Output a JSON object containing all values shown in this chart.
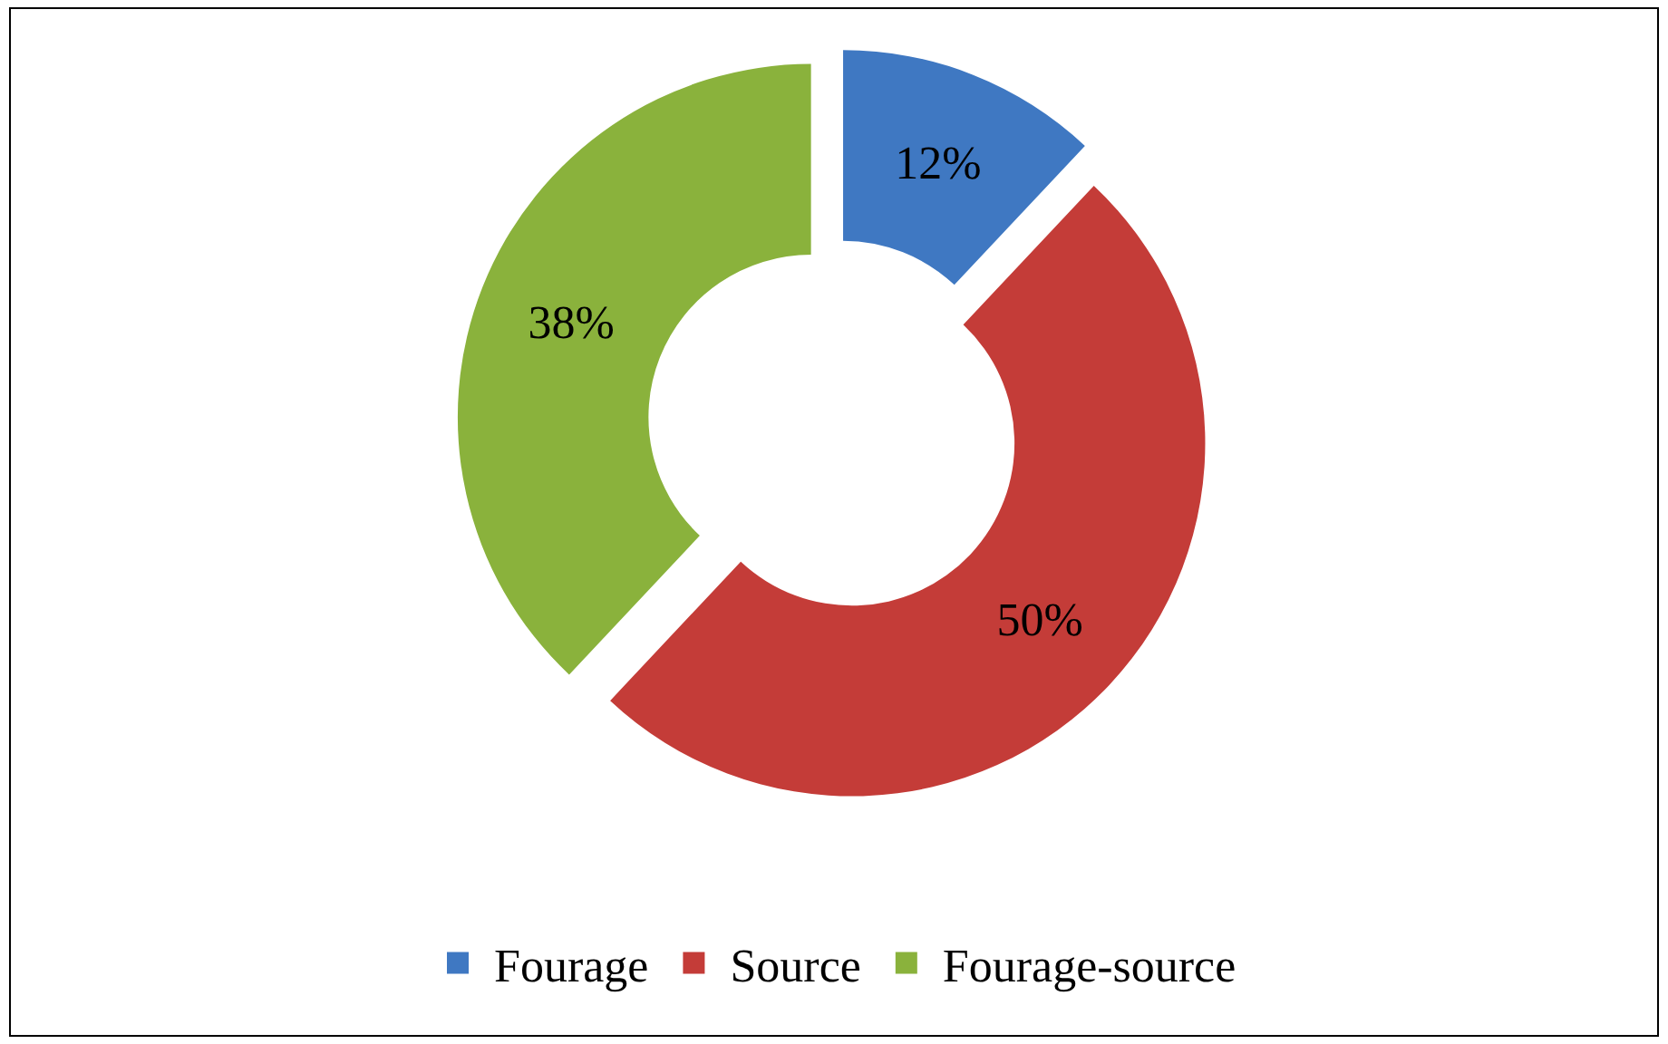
{
  "chart_data": {
    "type": "donut",
    "categories": [
      "Fourage",
      "Source",
      "Fourage-source"
    ],
    "values": [
      12,
      50,
      38
    ],
    "colors": [
      "#3f78c2",
      "#c43c38",
      "#8ab23c"
    ],
    "value_labels": [
      "12%",
      "50%",
      "38%"
    ],
    "legend": "bottom"
  }
}
